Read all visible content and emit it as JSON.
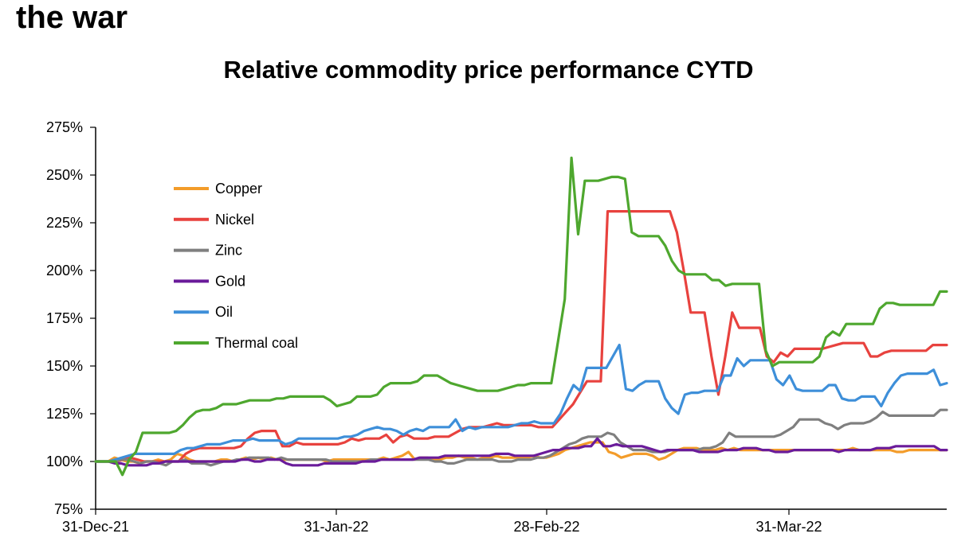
{
  "heading": "the war",
  "chart_data": {
    "type": "line",
    "title": "Relative commodity price performance CYTD",
    "xlabel": "",
    "ylabel": "",
    "ylim": [
      75,
      275
    ],
    "yticks": [
      "75%",
      "100%",
      "125%",
      "150%",
      "175%",
      "200%",
      "225%",
      "250%",
      "275%"
    ],
    "xticks": [
      "31-Dec-21",
      "31-Jan-22",
      "28-Feb-22",
      "31-Mar-22"
    ],
    "x_range": [
      "2021-12-31",
      "2022-04-20"
    ],
    "legend_position": "top-left (inside plot)",
    "grid": false,
    "series": [
      {
        "name": "Copper",
        "color": "#F39C2A",
        "values": [
          100,
          100,
          100,
          102,
          101,
          100,
          100,
          99,
          100,
          100,
          101,
          100,
          101,
          104,
          103,
          101,
          100,
          100,
          100,
          100,
          101,
          101,
          100,
          101,
          102,
          101,
          102,
          101,
          102,
          101,
          101,
          101,
          101,
          101,
          101,
          101,
          101,
          100,
          101,
          101,
          101,
          101,
          101,
          101,
          101,
          101,
          102,
          101,
          102,
          103,
          105,
          101,
          102,
          102,
          101,
          101,
          102,
          102,
          103,
          102,
          102,
          101,
          102,
          102,
          103,
          102,
          102,
          102,
          102,
          102,
          103,
          102,
          102,
          103,
          104,
          106,
          107,
          108,
          109,
          110,
          110,
          110,
          105,
          104,
          102,
          103,
          104,
          104,
          104,
          103,
          101,
          102,
          104,
          106,
          107,
          107,
          107,
          106,
          106,
          106,
          107,
          106,
          107,
          106,
          106,
          106,
          106,
          106,
          106,
          106,
          106,
          106,
          106,
          106,
          106,
          106,
          106,
          106,
          106,
          106,
          106,
          107,
          106,
          106,
          106,
          106,
          106,
          106,
          105,
          105,
          106,
          106,
          106,
          106,
          106,
          106,
          106
        ]
      },
      {
        "name": "Nickel",
        "color": "#E8423E",
        "values": [
          100,
          100,
          100,
          100,
          101,
          102,
          101,
          100,
          100,
          100,
          100,
          100,
          100,
          104,
          106,
          107,
          107,
          107,
          107,
          107,
          107,
          108,
          112,
          115,
          116,
          116,
          116,
          108,
          108,
          110,
          109,
          109,
          109,
          109,
          109,
          109,
          110,
          112,
          111,
          112,
          112,
          112,
          114,
          110,
          113,
          114,
          112,
          112,
          112,
          113,
          113,
          113,
          115,
          117,
          118,
          118,
          118,
          119,
          120,
          119,
          119,
          119,
          119,
          119,
          118,
          118,
          118,
          122,
          126,
          130,
          136,
          142,
          142,
          142,
          231,
          231,
          231,
          231,
          231,
          231,
          231,
          231,
          231,
          231,
          220,
          200,
          178,
          178,
          178,
          155,
          135,
          155,
          178,
          170,
          170,
          170,
          170,
          155,
          152,
          157,
          155,
          159,
          159,
          159,
          159,
          159,
          160,
          161,
          162,
          162,
          162,
          162,
          155,
          155,
          157,
          158,
          158,
          158,
          158,
          158,
          158,
          161,
          161,
          161
        ]
      },
      {
        "name": "Zinc",
        "color": "#7F7F7F",
        "values": [
          100,
          100,
          100,
          100,
          101,
          101,
          100,
          99,
          100,
          100,
          99,
          98,
          100,
          100,
          101,
          99,
          99,
          99,
          98,
          99,
          100,
          100,
          101,
          101,
          102,
          102,
          102,
          102,
          101,
          102,
          101,
          101,
          101,
          101,
          101,
          101,
          101,
          100,
          100,
          100,
          100,
          100,
          100,
          101,
          101,
          101,
          101,
          101,
          101,
          101,
          101,
          101,
          101,
          100,
          100,
          99,
          99,
          100,
          101,
          101,
          101,
          101,
          101,
          100,
          100,
          100,
          101,
          101,
          101,
          102,
          102,
          103,
          105,
          107,
          109,
          110,
          112,
          113,
          113,
          113,
          115,
          114,
          110,
          108,
          106,
          106,
          106,
          105,
          105,
          105,
          106,
          106,
          106,
          106,
          106,
          107,
          107,
          108,
          110,
          115,
          113,
          113,
          113,
          113,
          113,
          113,
          113,
          114,
          116,
          118,
          122,
          122,
          122,
          122,
          120,
          119,
          117,
          119,
          120,
          120,
          120,
          121,
          123,
          126,
          124,
          124,
          124,
          124,
          124,
          124,
          124,
          124,
          127,
          127
        ]
      },
      {
        "name": "Gold",
        "color": "#6A1B9A",
        "values": [
          100,
          100,
          100,
          99,
          99,
          98,
          98,
          98,
          98,
          99,
          99,
          100,
          100,
          100,
          100,
          100,
          100,
          100,
          100,
          100,
          100,
          100,
          100,
          101,
          101,
          100,
          100,
          101,
          101,
          101,
          99,
          98,
          98,
          98,
          98,
          98,
          99,
          99,
          99,
          99,
          99,
          99,
          100,
          100,
          100,
          101,
          101,
          101,
          101,
          101,
          101,
          102,
          102,
          102,
          102,
          103,
          103,
          103,
          103,
          103,
          103,
          103,
          103,
          104,
          104,
          104,
          103,
          103,
          103,
          103,
          104,
          105,
          106,
          106,
          107,
          107,
          107,
          108,
          108,
          112,
          108,
          108,
          109,
          108,
          108,
          108,
          108,
          107,
          106,
          105,
          106,
          106,
          106,
          106,
          106,
          105,
          105,
          105,
          105,
          106,
          106,
          106,
          107,
          107,
          107,
          106,
          106,
          105,
          105,
          105,
          106,
          106,
          106,
          106,
          106,
          106,
          106,
          105,
          106,
          106,
          106,
          106,
          106,
          107,
          107,
          107,
          108,
          108,
          108,
          108,
          108,
          108,
          108,
          106,
          106
        ]
      },
      {
        "name": "Oil",
        "color": "#3E8FD9",
        "values": [
          100,
          100,
          100,
          101,
          102,
          103,
          104,
          104,
          104,
          104,
          104,
          104,
          104,
          106,
          107,
          107,
          108,
          109,
          109,
          109,
          110,
          111,
          111,
          111,
          112,
          111,
          111,
          111,
          111,
          109,
          110,
          112,
          112,
          112,
          112,
          112,
          112,
          112,
          113,
          113,
          114,
          116,
          117,
          118,
          117,
          117,
          116,
          114,
          116,
          117,
          116,
          118,
          118,
          118,
          118,
          122,
          116,
          118,
          117,
          118,
          118,
          118,
          118,
          118,
          119,
          120,
          120,
          121,
          120,
          120,
          120,
          125,
          133,
          140,
          137,
          149,
          149,
          149,
          149,
          155,
          161,
          138,
          137,
          140,
          142,
          142,
          142,
          133,
          128,
          125,
          135,
          136,
          136,
          137,
          137,
          137,
          145,
          145,
          154,
          150,
          153,
          153,
          153,
          153,
          143,
          140,
          145,
          138,
          137,
          137,
          137,
          137,
          140,
          140,
          133,
          132,
          132,
          134,
          134,
          134,
          129,
          136,
          141,
          145,
          146,
          146,
          146,
          146,
          148,
          140,
          141
        ]
      },
      {
        "name": "Thermal coal",
        "color": "#4EA72E",
        "values": [
          100,
          100,
          100,
          100,
          93,
          101,
          105,
          115,
          115,
          115,
          115,
          115,
          116,
          119,
          123,
          126,
          127,
          127,
          128,
          130,
          130,
          130,
          131,
          132,
          132,
          132,
          132,
          133,
          133,
          134,
          134,
          134,
          134,
          134,
          134,
          132,
          129,
          130,
          131,
          134,
          134,
          134,
          135,
          139,
          141,
          141,
          141,
          141,
          142,
          145,
          145,
          145,
          143,
          141,
          140,
          139,
          138,
          137,
          137,
          137,
          137,
          138,
          139,
          140,
          140,
          141,
          141,
          141,
          141,
          163,
          185,
          259,
          219,
          247,
          247,
          247,
          248,
          249,
          249,
          248,
          220,
          218,
          218,
          218,
          218,
          213,
          205,
          200,
          198,
          198,
          198,
          198,
          195,
          195,
          192,
          193,
          193,
          193,
          193,
          193,
          158,
          150,
          152,
          152,
          152,
          152,
          152,
          152,
          155,
          165,
          168,
          166,
          172,
          172,
          172,
          172,
          172,
          180,
          183,
          183,
          182,
          182,
          182,
          182,
          182,
          182,
          189,
          189
        ]
      }
    ]
  }
}
